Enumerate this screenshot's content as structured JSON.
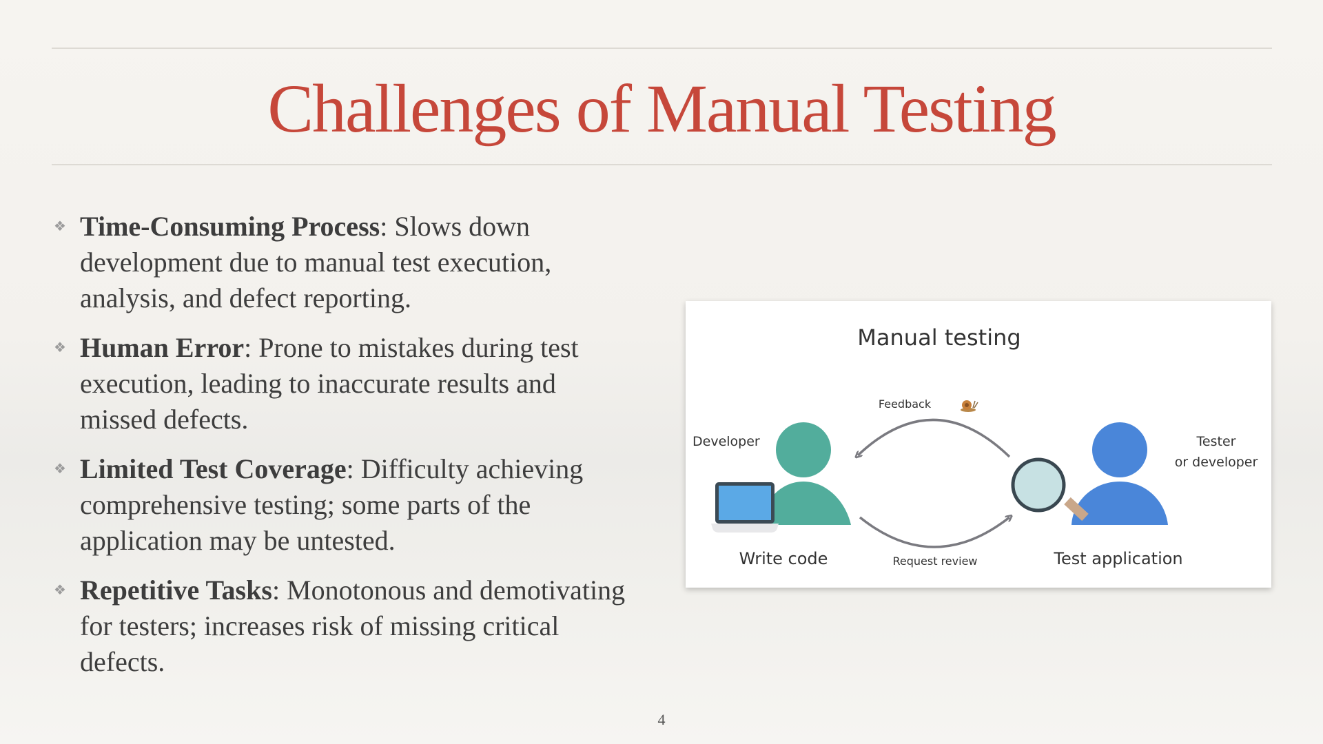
{
  "slide": {
    "title": "Challenges of Manual Testing",
    "page_number": "4",
    "bullets": [
      {
        "heading": "Time-Consuming Process",
        "body": ": Slows down development due to manual test execution, analysis, and defect reporting."
      },
      {
        "heading": "Human Error",
        "body": ": Prone to mistakes during test execution, leading to inaccurate results and missed defects."
      },
      {
        "heading": "Limited Test Coverage",
        "body": ": Difficulty achieving comprehensive testing; some parts of the application may be untested."
      },
      {
        "heading": "Repetitive Tasks",
        "body": ": Monotonous and demotivating for testers; increases risk of missing critical defects."
      }
    ],
    "bullet_marker": "❖"
  },
  "diagram": {
    "title": "Manual testing",
    "developer_label": "Developer",
    "tester_label_line1": "Tester",
    "tester_label_line2": "or developer",
    "write_code_label": "Write code",
    "test_application_label": "Test application",
    "feedback_label": "Feedback",
    "request_review_label": "Request review",
    "colors": {
      "developer": "#52ad9c",
      "tester": "#4a86d9",
      "arrow": "#7a7a80",
      "laptop_screen": "#5ba9e6",
      "magnifier_lens": "#c7e1e3"
    }
  }
}
